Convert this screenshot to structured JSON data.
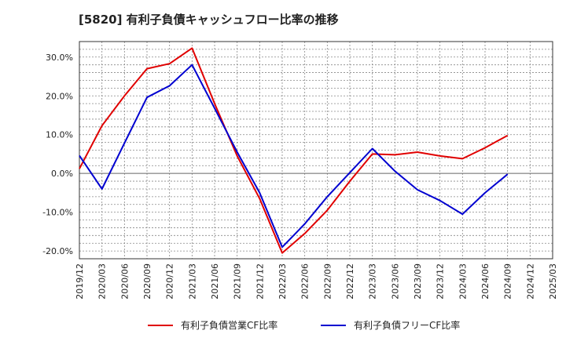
{
  "title": "[5820]  有利子負債キャッシュフロー比率の推移",
  "chart_data": {
    "type": "line",
    "title": "[5820]  有利子負債キャッシュフロー比率の推移",
    "xlabel": "",
    "ylabel": "",
    "x": [
      "2019/12",
      "2020/03",
      "2020/06",
      "2020/09",
      "2020/12",
      "2021/03",
      "2021/06",
      "2021/09",
      "2021/12",
      "2022/03",
      "2022/06",
      "2022/09",
      "2022/12",
      "2023/03",
      "2023/06",
      "2023/09",
      "2023/12",
      "2024/03",
      "2024/06",
      "2024/09",
      "2024/12",
      "2025/03"
    ],
    "ylim": [
      -22,
      34
    ],
    "yticks": [
      -20,
      -10,
      0,
      10,
      20,
      30
    ],
    "ytick_labels": [
      "-20.0%",
      "-10.0%",
      "0.0%",
      "10.0%",
      "20.0%",
      "30.0%"
    ],
    "grid": true,
    "legend_position": "bottom",
    "series": [
      {
        "name": "有利子負債営業CF比率",
        "color": "#e00000",
        "values": [
          1.2,
          12.3,
          20.0,
          27.0,
          28.3,
          32.3,
          18.0,
          4.5,
          -6.5,
          -20.5,
          -15.5,
          -9.5,
          -2.0,
          5.0,
          4.8,
          5.5,
          4.5,
          3.8,
          6.6,
          9.8,
          null,
          null
        ]
      },
      {
        "name": "有利子負債フリーCF比率",
        "color": "#0000d0",
        "values": [
          4.6,
          -4.0,
          7.8,
          19.6,
          22.6,
          28.0,
          16.8,
          5.5,
          -5.0,
          -19.0,
          -13.0,
          -6.0,
          0.2,
          6.4,
          0.6,
          -4.2,
          -7.0,
          -10.5,
          -5.0,
          -0.2,
          null,
          null
        ]
      }
    ]
  }
}
